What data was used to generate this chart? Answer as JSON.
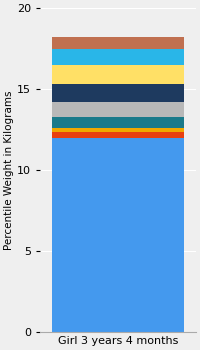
{
  "category": "Girl 3 years 4 months",
  "segments": [
    {
      "value": 12.0,
      "color": "#4499EE"
    },
    {
      "value": 0.35,
      "color": "#E84010"
    },
    {
      "value": 0.25,
      "color": "#F0A800"
    },
    {
      "value": 0.7,
      "color": "#1A7A8A"
    },
    {
      "value": 0.9,
      "color": "#B8B8B8"
    },
    {
      "value": 1.1,
      "color": "#1E3A5F"
    },
    {
      "value": 1.2,
      "color": "#FFE066"
    },
    {
      "value": 1.0,
      "color": "#29B6E8"
    },
    {
      "value": 0.7,
      "color": "#C07050"
    }
  ],
  "ylabel": "Percentile Weight in Kilograms",
  "ylim": [
    0,
    20
  ],
  "yticks": [
    0,
    5,
    10,
    15,
    20
  ],
  "bg_color": "#EFEFEF",
  "bar_width": 0.85,
  "xlabel_fontsize": 8,
  "ylabel_fontsize": 7.5,
  "tick_fontsize": 8
}
